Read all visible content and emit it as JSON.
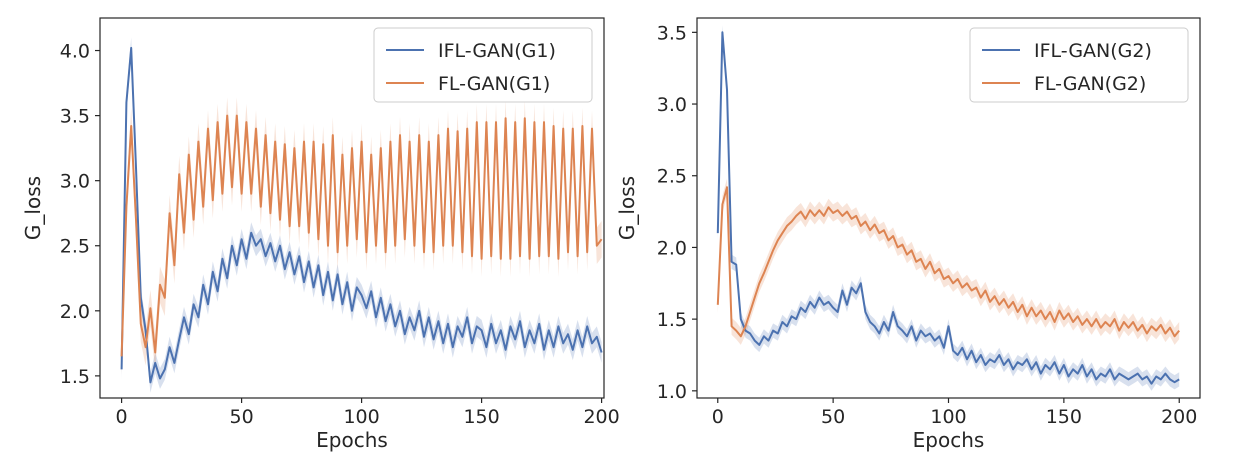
{
  "colors": {
    "blue": "#4c72b0",
    "orange": "#dd8452",
    "axes": "#262626"
  },
  "chart_data": [
    {
      "type": "line",
      "xlabel": "Epochs",
      "ylabel": "G_loss",
      "xlim": [
        -9,
        201
      ],
      "ylim": [
        1.33,
        4.25
      ],
      "xticks": [
        0,
        50,
        100,
        150,
        200
      ],
      "yticks": [
        1.5,
        2.0,
        2.5,
        3.0,
        3.5,
        4.0
      ],
      "grid": false,
      "legend_position": "top-right",
      "confidence_band": true,
      "series": [
        {
          "name": "IFL-GAN(G1)",
          "color": "#4c72b0",
          "band": 0.08,
          "x": [
            0,
            2,
            4,
            6,
            8,
            10,
            12,
            14,
            16,
            18,
            20,
            22,
            24,
            26,
            28,
            30,
            32,
            34,
            36,
            38,
            40,
            42,
            44,
            46,
            48,
            50,
            52,
            54,
            56,
            58,
            60,
            62,
            64,
            66,
            68,
            70,
            72,
            74,
            76,
            78,
            80,
            82,
            84,
            86,
            88,
            90,
            92,
            94,
            96,
            98,
            100,
            102,
            104,
            106,
            108,
            110,
            112,
            114,
            116,
            118,
            120,
            122,
            124,
            126,
            128,
            130,
            132,
            134,
            136,
            138,
            140,
            142,
            144,
            146,
            148,
            150,
            152,
            154,
            156,
            158,
            160,
            162,
            164,
            166,
            168,
            170,
            172,
            174,
            176,
            178,
            180,
            182,
            184,
            186,
            188,
            190,
            192,
            194,
            196,
            198,
            200
          ],
          "y": [
            1.55,
            3.6,
            4.02,
            3.1,
            2.1,
            1.85,
            1.45,
            1.6,
            1.48,
            1.55,
            1.72,
            1.6,
            1.78,
            1.95,
            1.82,
            2.05,
            1.95,
            2.2,
            2.05,
            2.3,
            2.15,
            2.4,
            2.25,
            2.5,
            2.35,
            2.55,
            2.4,
            2.6,
            2.5,
            2.55,
            2.42,
            2.52,
            2.38,
            2.5,
            2.32,
            2.45,
            2.28,
            2.42,
            2.22,
            2.38,
            2.18,
            2.35,
            2.12,
            2.3,
            2.08,
            2.28,
            2.05,
            2.22,
            2.0,
            2.18,
            2.12,
            2.02,
            2.15,
            1.95,
            2.1,
            1.92,
            2.05,
            1.88,
            2.0,
            1.82,
            1.95,
            1.85,
            2.0,
            1.8,
            1.95,
            1.78,
            1.92,
            1.75,
            1.9,
            1.72,
            1.88,
            1.8,
            1.95,
            1.75,
            1.88,
            1.85,
            1.72,
            1.9,
            1.75,
            1.85,
            1.7,
            1.88,
            1.78,
            1.92,
            1.72,
            1.85,
            1.75,
            1.9,
            1.7,
            1.85,
            1.72,
            1.88,
            1.75,
            1.82,
            1.7,
            1.85,
            1.72,
            1.88,
            1.75,
            1.8,
            1.68
          ]
        },
        {
          "name": "FL-GAN(G1)",
          "color": "#dd8452",
          "band": 0.14,
          "x": [
            0,
            2,
            4,
            6,
            8,
            10,
            12,
            14,
            16,
            18,
            20,
            22,
            24,
            26,
            28,
            30,
            32,
            34,
            36,
            38,
            40,
            42,
            44,
            46,
            48,
            50,
            52,
            54,
            56,
            58,
            60,
            62,
            64,
            66,
            68,
            70,
            72,
            74,
            76,
            78,
            80,
            82,
            84,
            86,
            88,
            90,
            92,
            94,
            96,
            98,
            100,
            102,
            104,
            106,
            108,
            110,
            112,
            114,
            116,
            118,
            120,
            122,
            124,
            126,
            128,
            130,
            132,
            134,
            136,
            138,
            140,
            142,
            144,
            146,
            148,
            150,
            152,
            154,
            156,
            158,
            160,
            162,
            164,
            166,
            168,
            170,
            172,
            174,
            176,
            178,
            180,
            182,
            184,
            186,
            188,
            190,
            192,
            194,
            196,
            198,
            200
          ],
          "y": [
            1.65,
            2.8,
            3.42,
            2.7,
            1.9,
            1.72,
            2.02,
            1.68,
            2.2,
            2.1,
            2.75,
            2.35,
            3.05,
            2.6,
            3.2,
            2.7,
            3.3,
            2.8,
            3.4,
            2.85,
            3.45,
            2.9,
            3.5,
            2.95,
            3.5,
            2.9,
            3.45,
            2.9,
            3.4,
            2.8,
            3.35,
            2.75,
            3.3,
            2.7,
            3.28,
            2.65,
            3.25,
            2.65,
            3.3,
            2.6,
            3.3,
            2.55,
            3.28,
            2.5,
            3.35,
            2.45,
            3.2,
            2.5,
            3.25,
            2.55,
            3.3,
            2.45,
            3.2,
            2.5,
            3.25,
            2.45,
            3.3,
            2.5,
            3.35,
            2.55,
            3.3,
            2.5,
            3.35,
            2.45,
            3.3,
            2.45,
            3.35,
            2.5,
            3.4,
            2.5,
            3.38,
            2.45,
            3.4,
            2.42,
            3.45,
            2.4,
            3.45,
            2.42,
            3.45,
            2.4,
            3.48,
            2.4,
            3.45,
            2.42,
            3.48,
            2.4,
            3.45,
            2.42,
            3.45,
            2.42,
            3.42,
            2.4,
            3.4,
            2.45,
            3.4,
            2.42,
            3.42,
            2.45,
            3.4,
            2.5,
            2.55
          ]
        }
      ]
    },
    {
      "type": "line",
      "xlabel": "Epochs",
      "ylabel": "G_loss",
      "xlim": [
        -9,
        209
      ],
      "ylim": [
        0.95,
        3.6
      ],
      "xticks": [
        0,
        50,
        100,
        150,
        200
      ],
      "yticks": [
        1.0,
        1.5,
        2.0,
        2.5,
        3.0,
        3.5
      ],
      "grid": false,
      "legend_position": "top-right",
      "confidence_band": true,
      "series": [
        {
          "name": "IFL-GAN(G2)",
          "color": "#4c72b0",
          "band": 0.05,
          "x": [
            0,
            2,
            4,
            6,
            8,
            10,
            12,
            14,
            16,
            18,
            20,
            22,
            24,
            26,
            28,
            30,
            32,
            34,
            36,
            38,
            40,
            42,
            44,
            46,
            48,
            50,
            52,
            54,
            56,
            58,
            60,
            62,
            64,
            66,
            68,
            70,
            72,
            74,
            76,
            78,
            80,
            82,
            84,
            86,
            88,
            90,
            92,
            94,
            96,
            98,
            100,
            102,
            104,
            106,
            108,
            110,
            112,
            114,
            116,
            118,
            120,
            122,
            124,
            126,
            128,
            130,
            132,
            134,
            136,
            138,
            140,
            142,
            144,
            146,
            148,
            150,
            152,
            154,
            156,
            158,
            160,
            162,
            164,
            166,
            168,
            170,
            172,
            174,
            176,
            178,
            180,
            182,
            184,
            186,
            188,
            190,
            192,
            194,
            196,
            198,
            200
          ],
          "y": [
            2.1,
            3.5,
            3.1,
            1.9,
            1.88,
            1.5,
            1.42,
            1.4,
            1.35,
            1.32,
            1.38,
            1.35,
            1.42,
            1.4,
            1.48,
            1.45,
            1.52,
            1.5,
            1.58,
            1.55,
            1.62,
            1.58,
            1.65,
            1.6,
            1.62,
            1.58,
            1.55,
            1.7,
            1.6,
            1.72,
            1.68,
            1.75,
            1.55,
            1.48,
            1.45,
            1.4,
            1.48,
            1.42,
            1.55,
            1.45,
            1.42,
            1.38,
            1.45,
            1.35,
            1.42,
            1.38,
            1.4,
            1.35,
            1.38,
            1.3,
            1.45,
            1.28,
            1.25,
            1.3,
            1.22,
            1.28,
            1.2,
            1.25,
            1.18,
            1.22,
            1.2,
            1.25,
            1.18,
            1.22,
            1.15,
            1.2,
            1.18,
            1.22,
            1.15,
            1.2,
            1.12,
            1.18,
            1.15,
            1.2,
            1.12,
            1.18,
            1.1,
            1.15,
            1.12,
            1.18,
            1.1,
            1.15,
            1.08,
            1.12,
            1.1,
            1.15,
            1.08,
            1.12,
            1.1,
            1.08,
            1.1,
            1.12,
            1.08,
            1.1,
            1.05,
            1.1,
            1.08,
            1.12,
            1.08,
            1.06,
            1.08
          ]
        },
        {
          "name": "FL-GAN(G2)",
          "color": "#dd8452",
          "band": 0.06,
          "x": [
            0,
            2,
            4,
            6,
            8,
            10,
            12,
            14,
            16,
            18,
            20,
            22,
            24,
            26,
            28,
            30,
            32,
            34,
            36,
            38,
            40,
            42,
            44,
            46,
            48,
            50,
            52,
            54,
            56,
            58,
            60,
            62,
            64,
            66,
            68,
            70,
            72,
            74,
            76,
            78,
            80,
            82,
            84,
            86,
            88,
            90,
            92,
            94,
            96,
            98,
            100,
            102,
            104,
            106,
            108,
            110,
            112,
            114,
            116,
            118,
            120,
            122,
            124,
            126,
            128,
            130,
            132,
            134,
            136,
            138,
            140,
            142,
            144,
            146,
            148,
            150,
            152,
            154,
            156,
            158,
            160,
            162,
            164,
            166,
            168,
            170,
            172,
            174,
            176,
            178,
            180,
            182,
            184,
            186,
            188,
            190,
            192,
            194,
            196,
            198,
            200
          ],
          "y": [
            1.6,
            2.3,
            2.42,
            1.45,
            1.42,
            1.38,
            1.45,
            1.55,
            1.65,
            1.75,
            1.82,
            1.9,
            1.98,
            2.05,
            2.1,
            2.15,
            2.18,
            2.22,
            2.25,
            2.2,
            2.26,
            2.22,
            2.26,
            2.22,
            2.28,
            2.24,
            2.26,
            2.22,
            2.25,
            2.2,
            2.22,
            2.15,
            2.18,
            2.12,
            2.16,
            2.1,
            2.12,
            2.05,
            2.08,
            2.0,
            2.02,
            1.95,
            1.98,
            1.9,
            1.92,
            1.85,
            1.9,
            1.82,
            1.85,
            1.78,
            1.8,
            1.75,
            1.78,
            1.72,
            1.75,
            1.7,
            1.72,
            1.65,
            1.7,
            1.62,
            1.66,
            1.6,
            1.64,
            1.58,
            1.62,
            1.55,
            1.6,
            1.52,
            1.58,
            1.52,
            1.56,
            1.5,
            1.55,
            1.48,
            1.56,
            1.5,
            1.54,
            1.48,
            1.52,
            1.46,
            1.5,
            1.45,
            1.5,
            1.44,
            1.48,
            1.45,
            1.5,
            1.42,
            1.48,
            1.44,
            1.48,
            1.42,
            1.46,
            1.4,
            1.45,
            1.42,
            1.46,
            1.4,
            1.44,
            1.38,
            1.42
          ]
        }
      ]
    }
  ]
}
